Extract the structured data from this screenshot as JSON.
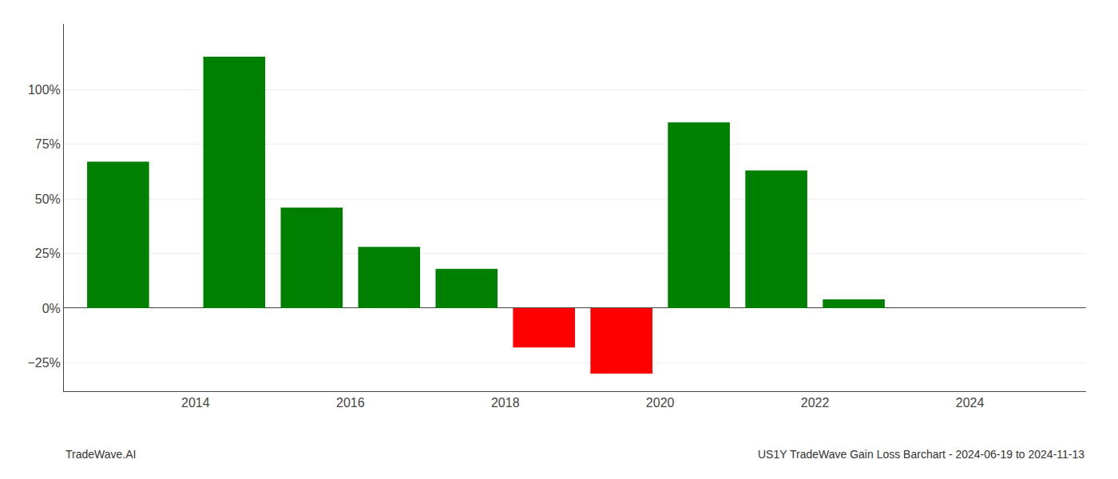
{
  "chart_data": {
    "type": "bar",
    "x": [
      2013,
      2014.5,
      2015.5,
      2016.5,
      2017.5,
      2018.5,
      2019.5,
      2020.5,
      2021.5,
      2022.5
    ],
    "values": [
      0.67,
      1.15,
      0.46,
      0.28,
      0.18,
      -0.18,
      -0.3,
      0.85,
      0.63,
      0.04
    ],
    "colors": [
      "#008000",
      "#008000",
      "#008000",
      "#008000",
      "#008000",
      "#ff0000",
      "#ff0000",
      "#008000",
      "#008000",
      "#008000"
    ],
    "xlim": [
      2012.3,
      2025.5
    ],
    "ylim": [
      -0.38,
      1.3
    ],
    "xticks": [
      2014,
      2016,
      2018,
      2020,
      2022,
      2024
    ],
    "yticks": [
      {
        "value": -0.25,
        "label": "−25%"
      },
      {
        "value": 0.0,
        "label": "0%"
      },
      {
        "value": 0.25,
        "label": "25%"
      },
      {
        "value": 0.5,
        "label": "50%"
      },
      {
        "value": 0.75,
        "label": "75%"
      },
      {
        "value": 1.0,
        "label": "100%"
      }
    ],
    "grid": true,
    "annotations": [
      "TradeWave.AI",
      "US1Y TradeWave Gain Loss Barchart - 2024-06-19 to 2024-11-13"
    ]
  }
}
